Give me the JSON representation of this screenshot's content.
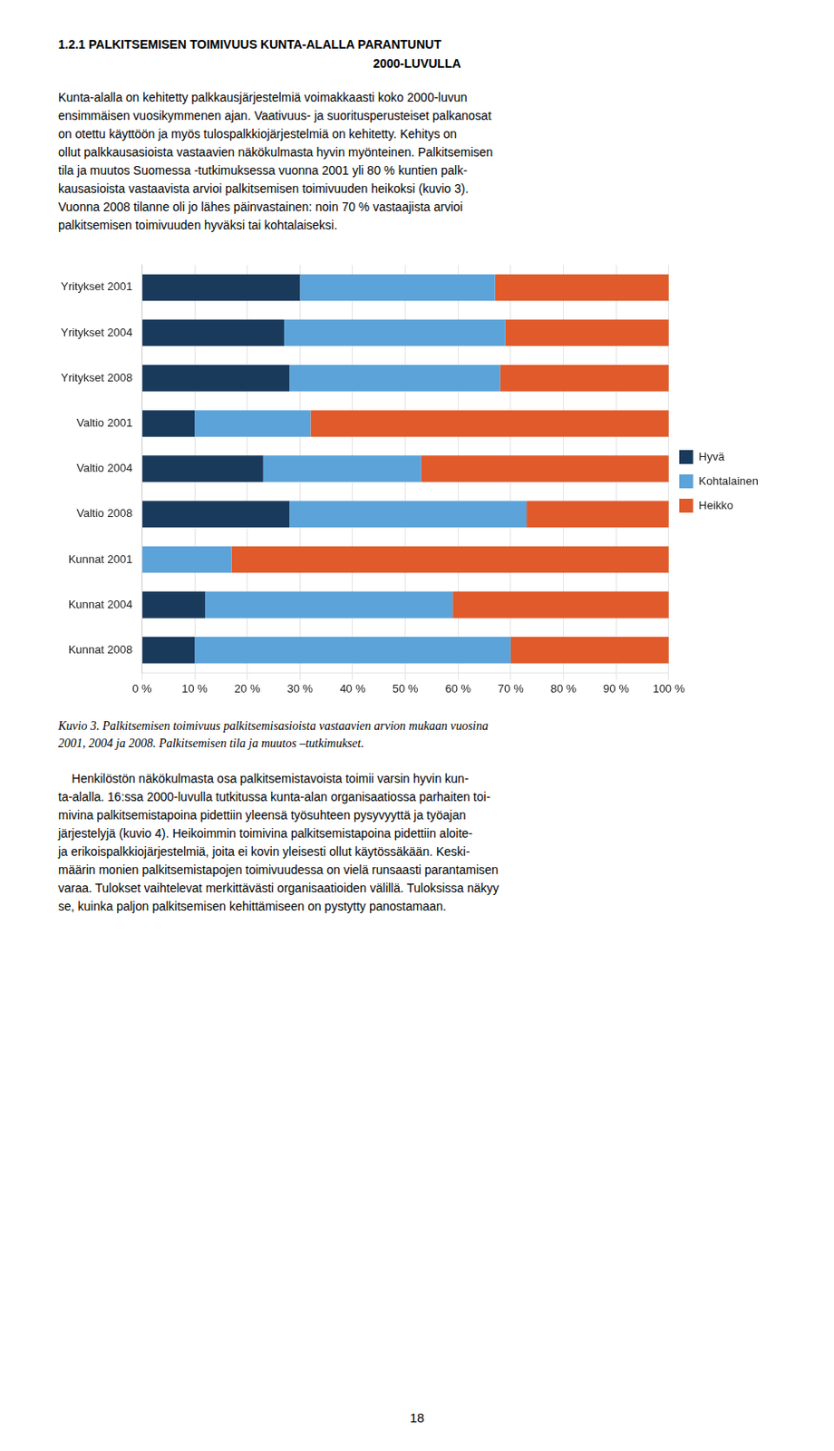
{
  "title": "1.2.1 PALKITSEMISEN TOIMIVUUS KUNTA-ALALLA PARANTUNUT\n2000-LUVULLA",
  "body_text": "Kunta-alalla on kehitetty palkkausjärjestelmiä voimakkaasti koko 2000-luvun\nensimmäisen vuosikymmenen ajan. Vaativuus- ja suoritusperusteiset palkanosat\non otettu käyttöön ja myös tulospalkkiojärjestelmiä on kehitetty. Kehitys on\nollut palkkausasioista vastaavien näkökulmasta hyvin myönteinen. Palkitsemisen\ntila ja muutos Suomessa -tutkimuksessa vuonna 2001 yli 80 % kuntien palk-\nkausasioista vastaavista arvioi palkitsemisen toimivuuden heikoksi (kuvio 3).\nVuonna 2008 tilanne oli jo lähes päinvastainen: noin 70 % vastaajista arvioi\npalkitsemisen toimivuuden hyväksi tai kohtalaiseksi.",
  "caption": "Kuvio 3. Palkitsemisen toimivuus palkitsemisasioista vastaavien arvion mukaan vuosina\n2001, 2004 ja 2008. Palkitsemisen tila ja muutos –tutkimukset.",
  "bottom_text": "    Henkilöstön näkökulmasta osa palkitsemistavoista toimii varsin hyvin kun-\nta-alalla. 16:ssa 2000-luvulla tutkitussa kunta-alan organisaatiossa parhaiten toi-\nmivina palkitsemistapoina pidettiin yleensä työsuhteen pysyvyyttä ja työajan\njärjestelyjä (kuvio 4). Heikoimmin toimivina palkitsemistapoina pidettiin aloite-\nja erikoispalkkiojärjestelmiä, joita ei kovin yleisesti ollut käytössäkään. Keski-\nmäärin monien palkitsemistapojen toimivuudessa on vielä runsaasti parantamisen\nvaraa. Tulokset vaihtelevat merkittävästi organisaatioiden välillä. Tuloksissa näkyy\nse, kuinka paljon palkitsemisen kehittämiseen on pystytty panostamaan.",
  "page_number": "18",
  "chart_data": {
    "type": "bar",
    "orientation": "horizontal",
    "stacked": true,
    "categories": [
      "Yritykset 2001",
      "Yritykset 2004",
      "Yritykset 2008",
      "Valtio 2001",
      "Valtio 2004",
      "Valtio 2008",
      "Kunnat 2001",
      "Kunnat 2004",
      "Kunnat 2008"
    ],
    "series": [
      {
        "name": "Hyvä",
        "color": "#1a3a5c",
        "values": [
          30,
          27,
          28,
          10,
          23,
          28,
          0,
          12,
          10
        ]
      },
      {
        "name": "Kohtalainen",
        "color": "#5ba3d9",
        "values": [
          37,
          42,
          40,
          22,
          30,
          45,
          17,
          47,
          60
        ]
      },
      {
        "name": "Heikko",
        "color": "#e05a2b",
        "values": [
          33,
          31,
          32,
          68,
          47,
          27,
          83,
          41,
          30
        ]
      }
    ],
    "xlim": [
      0,
      100
    ],
    "xticks": [
      {
        "value": 0,
        "label": "0 %"
      },
      {
        "value": 10,
        "label": "10 %"
      },
      {
        "value": 20,
        "label": "20 %"
      },
      {
        "value": 30,
        "label": "30 %"
      },
      {
        "value": 40,
        "label": "40 %"
      },
      {
        "value": 50,
        "label": "50 %"
      },
      {
        "value": 60,
        "label": "60 %"
      },
      {
        "value": 70,
        "label": "70 %"
      },
      {
        "value": 80,
        "label": "80 %"
      },
      {
        "value": 90,
        "label": "90 %"
      },
      {
        "value": 100,
        "label": "100 %"
      }
    ],
    "grid": true,
    "legend": "right"
  }
}
